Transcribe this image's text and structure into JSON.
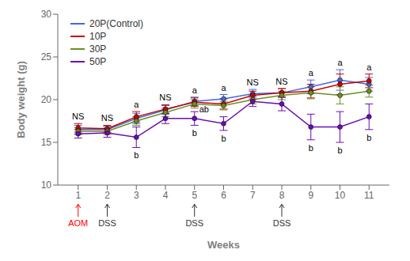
{
  "chart_data": {
    "type": "line",
    "xlabel": "Weeks",
    "ylabel": "Body weight (g)",
    "x": [
      1,
      2,
      3,
      4,
      5,
      6,
      7,
      8,
      9,
      10,
      11
    ],
    "xlim": [
      0.3,
      11.7
    ],
    "xticks": [
      1,
      2,
      3,
      4,
      5,
      6,
      7,
      8,
      9,
      10,
      11
    ],
    "ylim": [
      10,
      30
    ],
    "yticks": [
      10,
      15,
      20,
      25,
      30
    ],
    "grid": false,
    "legend": "upper left",
    "marker": "o",
    "series": [
      {
        "name": "20P(Control)",
        "color": "#4169E1",
        "values": [
          16.5,
          16.5,
          17.8,
          18.8,
          19.8,
          20.1,
          20.7,
          20.8,
          21.5,
          22.3,
          21.8
        ],
        "errors": [
          0.5,
          0.4,
          0.6,
          0.5,
          0.5,
          0.5,
          0.5,
          0.5,
          0.8,
          1.2,
          0.8
        ]
      },
      {
        "name": "10P",
        "color": "#CC0000",
        "values": [
          16.7,
          16.6,
          18.0,
          18.9,
          19.7,
          19.5,
          20.5,
          20.8,
          21.0,
          21.8,
          22.2
        ],
        "errors": [
          0.5,
          0.4,
          0.6,
          0.5,
          0.5,
          0.6,
          0.5,
          0.5,
          0.8,
          1.2,
          0.8
        ]
      },
      {
        "name": "30P",
        "color": "#6B8E23",
        "values": [
          16.3,
          16.3,
          17.5,
          18.5,
          19.5,
          19.3,
          20.0,
          20.5,
          20.8,
          20.5,
          21.0
        ],
        "errors": [
          0.4,
          0.4,
          0.5,
          0.5,
          0.5,
          0.5,
          0.5,
          0.5,
          0.7,
          1.0,
          0.7
        ]
      },
      {
        "name": "50P",
        "color": "#6A0DAD",
        "values": [
          16.0,
          16.1,
          15.6,
          17.8,
          17.8,
          17.2,
          19.8,
          19.5,
          16.8,
          16.8,
          18.0
        ],
        "errors": [
          0.5,
          0.5,
          1.2,
          0.6,
          0.8,
          0.8,
          0.6,
          0.8,
          1.5,
          1.8,
          1.5
        ]
      }
    ],
    "significance_labels": [
      {
        "x": 1,
        "text": "NS"
      },
      {
        "x": 2,
        "text": "NS"
      },
      {
        "x": 3,
        "text": "a"
      },
      {
        "x": 4,
        "text": "NS"
      },
      {
        "x": 5,
        "text": "a"
      },
      {
        "x": 6,
        "text": "a"
      },
      {
        "x": 7,
        "text": "NS"
      },
      {
        "x": 8,
        "text": "NS"
      },
      {
        "x": 9,
        "text": "a"
      },
      {
        "x": 10,
        "text": "a"
      },
      {
        "x": 11,
        "text": "a"
      }
    ],
    "lower_labels": [
      {
        "x": 3,
        "text": "b"
      },
      {
        "x": 5,
        "text": "b"
      },
      {
        "x": 6,
        "text": "b"
      },
      {
        "x": 9,
        "text": "b"
      },
      {
        "x": 10,
        "text": "b"
      },
      {
        "x": 11,
        "text": "b"
      }
    ],
    "mid_labels": [
      {
        "x": 5,
        "text": "ab"
      }
    ],
    "arrows": [
      {
        "x": 1,
        "text": "AOM",
        "color": "red"
      },
      {
        "x": 2,
        "text": "DSS",
        "color": "#333333"
      },
      {
        "x": 5,
        "text": "DSS",
        "color": "#333333"
      },
      {
        "x": 8,
        "text": "DSS",
        "color": "#333333"
      }
    ]
  }
}
